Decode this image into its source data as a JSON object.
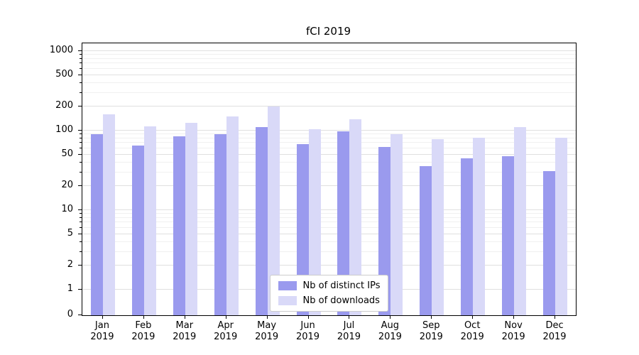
{
  "chart_data": {
    "type": "bar",
    "title": "fCI 2019",
    "categories": [
      "Jan 2019",
      "Feb 2019",
      "Mar 2019",
      "Apr 2019",
      "May 2019",
      "Jun 2019",
      "Jul 2019",
      "Aug 2019",
      "Sep 2019",
      "Oct 2019",
      "Nov 2019",
      "Dec 2019"
    ],
    "series": [
      {
        "name": "Nb of distinct IPs",
        "color": "#9a9aee",
        "values": [
          90,
          65,
          85,
          90,
          110,
          68,
          97,
          62,
          36,
          45,
          48,
          31
        ]
      },
      {
        "name": "Nb of downloads",
        "color": "#d9d9f8",
        "values": [
          160,
          113,
          125,
          152,
          200,
          104,
          138,
          90,
          78,
          82,
          110,
          82
        ]
      }
    ],
    "yscale": "symlog",
    "yticks": [
      0,
      1,
      2,
      5,
      10,
      20,
      50,
      100,
      200,
      500,
      1000
    ],
    "ylim": [
      0,
      1300
    ],
    "xlabel": "",
    "ylabel": "",
    "grid": true,
    "legend_position": "lower center"
  }
}
